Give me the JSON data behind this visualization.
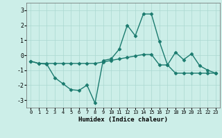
{
  "title": "",
  "xlabel": "Humidex (Indice chaleur)",
  "ylabel": "",
  "background_color": "#cceee8",
  "line_color": "#1a7a6e",
  "grid_color": "#aad8d0",
  "xlim": [
    -0.5,
    23.5
  ],
  "ylim": [
    -3.5,
    3.5
  ],
  "yticks": [
    -3,
    -2,
    -1,
    0,
    1,
    2,
    3
  ],
  "xticks": [
    0,
    1,
    2,
    3,
    4,
    5,
    6,
    7,
    8,
    9,
    10,
    11,
    12,
    13,
    14,
    15,
    16,
    17,
    18,
    19,
    20,
    21,
    22,
    23
  ],
  "line1_x": [
    0,
    1,
    2,
    3,
    4,
    5,
    6,
    7,
    8,
    9,
    10,
    11,
    12,
    13,
    14,
    15,
    16,
    17,
    18,
    19,
    20,
    21,
    22,
    23
  ],
  "line1_y": [
    -0.4,
    -0.55,
    -0.6,
    -1.5,
    -1.9,
    -2.3,
    -2.35,
    -2.0,
    -3.2,
    -0.35,
    -0.25,
    0.4,
    2.0,
    1.3,
    2.75,
    2.75,
    0.9,
    -0.65,
    0.2,
    -0.3,
    0.1,
    -0.7,
    -1.0,
    -1.2
  ],
  "line2_x": [
    0,
    1,
    2,
    3,
    4,
    5,
    6,
    7,
    8,
    9,
    10,
    11,
    12,
    13,
    14,
    15,
    16,
    17,
    18,
    19,
    20,
    21,
    22,
    23
  ],
  "line2_y": [
    -0.4,
    -0.55,
    -0.55,
    -0.55,
    -0.55,
    -0.55,
    -0.55,
    -0.55,
    -0.55,
    -0.45,
    -0.35,
    -0.25,
    -0.15,
    -0.05,
    0.05,
    0.05,
    -0.65,
    -0.65,
    -1.2,
    -1.2,
    -1.2,
    -1.2,
    -1.2,
    -1.2
  ],
  "marker": "D",
  "marker_size": 2.5,
  "line_width": 1.0
}
